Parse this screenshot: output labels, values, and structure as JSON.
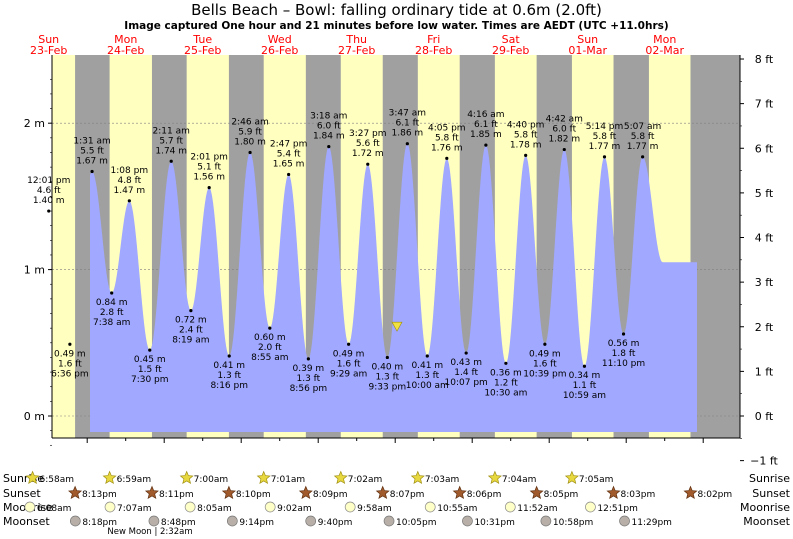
{
  "header": {
    "title": "Bells Beach – Bowl: falling  ordinary tide at 0.6m (2.0ft)",
    "subtitle": "Image captured One hour and 21 minutes before low water. Times are AEDT (UTC +11.0hrs)"
  },
  "colors": {
    "night": "#a0a0a0",
    "day": "#ffffc0",
    "water": "#a0a8ff",
    "date_label": "#ff0000",
    "sun_icon": "#e8d840",
    "sunset_icon": "#a05a2c",
    "moonrise_icon": "#ffffc8",
    "moonset_icon": "#b8b0a8"
  },
  "days": [
    {
      "dow": "Sun",
      "date": "23-Feb"
    },
    {
      "dow": "Mon",
      "date": "24-Feb"
    },
    {
      "dow": "Tue",
      "date": "25-Feb"
    },
    {
      "dow": "Wed",
      "date": "26-Feb"
    },
    {
      "dow": "Thu",
      "date": "27-Feb"
    },
    {
      "dow": "Fri",
      "date": "28-Feb"
    },
    {
      "dow": "Sat",
      "date": "29-Feb"
    },
    {
      "dow": "Sun",
      "date": "01-Mar"
    },
    {
      "dow": "Mon",
      "date": "02-Mar"
    }
  ],
  "chart_data": {
    "type": "area",
    "x_axis": "time (days from 23-Feb 00:00, AEDT)",
    "y_left": {
      "unit": "m",
      "ticks": [
        "0 m",
        "1 m",
        "2 m"
      ],
      "range": [
        -0.3,
        2.45
      ]
    },
    "y_right": {
      "unit": "ft",
      "ticks": [
        "−1 ft",
        "0 ft",
        "1 ft",
        "2 ft",
        "3 ft",
        "4 ft",
        "5 ft",
        "6 ft",
        "7 ft",
        "8 ft"
      ]
    },
    "current": {
      "level_m": 0.6,
      "level_ft": 2.0,
      "state": "falling"
    },
    "extremes": [
      {
        "type": "high",
        "time": "12:01 pm",
        "ft": "4.6 ft",
        "m": "1.40 m",
        "day": 0
      },
      {
        "type": "low",
        "time": "6:36 pm",
        "ft": "1.6 ft",
        "m": "0.49 m",
        "day": 0
      },
      {
        "type": "high",
        "time": "1:31 am",
        "ft": "5.5 ft",
        "m": "1.67 m",
        "day": 1
      },
      {
        "type": "low",
        "time": "7:38 am",
        "ft": "2.8 ft",
        "m": "0.84 m",
        "day": 1
      },
      {
        "type": "high",
        "time": "1:08 pm",
        "ft": "4.8 ft",
        "m": "1.47 m",
        "day": 1
      },
      {
        "type": "low",
        "time": "7:30 pm",
        "ft": "1.5 ft",
        "m": "0.45 m",
        "day": 1
      },
      {
        "type": "high",
        "time": "2:11 am",
        "ft": "5.7 ft",
        "m": "1.74 m",
        "day": 2
      },
      {
        "type": "low",
        "time": "8:19 am",
        "ft": "2.4 ft",
        "m": "0.72 m",
        "day": 2
      },
      {
        "type": "high",
        "time": "2:01 pm",
        "ft": "5.1 ft",
        "m": "1.56 m",
        "day": 2
      },
      {
        "type": "low",
        "time": "8:16 pm",
        "ft": "1.3 ft",
        "m": "0.41 m",
        "day": 2
      },
      {
        "type": "high",
        "time": "2:46 am",
        "ft": "5.9 ft",
        "m": "1.80 m",
        "day": 3
      },
      {
        "type": "low",
        "time": "8:55 am",
        "ft": "2.0 ft",
        "m": "0.60 m",
        "day": 3
      },
      {
        "type": "high",
        "time": "2:47 pm",
        "ft": "5.4 ft",
        "m": "1.65 m",
        "day": 3
      },
      {
        "type": "low",
        "time": "8:56 pm",
        "ft": "1.3 ft",
        "m": "0.39 m",
        "day": 3
      },
      {
        "type": "high",
        "time": "3:18 am",
        "ft": "6.0 ft",
        "m": "1.84 m",
        "day": 4
      },
      {
        "type": "low",
        "time": "9:29 am",
        "ft": "1.6 ft",
        "m": "0.49 m",
        "day": 4
      },
      {
        "type": "high",
        "time": "3:27 pm",
        "ft": "5.6 ft",
        "m": "1.72 m",
        "day": 4
      },
      {
        "type": "low",
        "time": "9:33 pm",
        "ft": "1.3 ft",
        "m": "0.40 m",
        "day": 4
      },
      {
        "type": "high",
        "time": "3:47 am",
        "ft": "6.1 ft",
        "m": "1.86 m",
        "day": 5
      },
      {
        "type": "low",
        "time": "10:00 am",
        "ft": "1.3 ft",
        "m": "0.41 m",
        "day": 5
      },
      {
        "type": "high",
        "time": "4:05 pm",
        "ft": "5.8 ft",
        "m": "1.76 m",
        "day": 5
      },
      {
        "type": "low",
        "time": "10:07 pm",
        "ft": "1.4 ft",
        "m": "0.43 m",
        "day": 5
      },
      {
        "type": "high",
        "time": "4:16 am",
        "ft": "6.1 ft",
        "m": "1.85 m",
        "day": 6
      },
      {
        "type": "low",
        "time": "10:30 am",
        "ft": "1.2 ft",
        "m": "0.36 m",
        "day": 6
      },
      {
        "type": "high",
        "time": "4:40 pm",
        "ft": "5.8 ft",
        "m": "1.78 m",
        "day": 6
      },
      {
        "type": "low",
        "time": "10:39 pm",
        "ft": "1.6 ft",
        "m": "0.49 m",
        "day": 6
      },
      {
        "type": "high",
        "time": "4:42 am",
        "ft": "6.0 ft",
        "m": "1.82 m",
        "day": 7
      },
      {
        "type": "low",
        "time": "10:59 am",
        "ft": "1.1 ft",
        "m": "0.34 m",
        "day": 7
      },
      {
        "type": "high",
        "time": "5:14 pm",
        "ft": "5.8 ft",
        "m": "1.77 m",
        "day": 7
      },
      {
        "type": "low",
        "time": "11:10 pm",
        "ft": "1.8 ft",
        "m": "0.56 m",
        "day": 7
      },
      {
        "type": "high",
        "time": "5:07 am",
        "ft": "5.8 ft",
        "m": "1.77 m",
        "day": 8
      }
    ]
  },
  "astro": {
    "row_labels": [
      "Sunrise",
      "Sunset",
      "Moonrise",
      "Moonset"
    ],
    "sunrise": [
      {
        "time": "6:58am",
        "day": 0
      },
      {
        "time": "6:59am",
        "day": 1
      },
      {
        "time": "7:00am",
        "day": 2
      },
      {
        "time": "7:01am",
        "day": 3
      },
      {
        "time": "7:02am",
        "day": 4
      },
      {
        "time": "7:03am",
        "day": 5
      },
      {
        "time": "7:04am",
        "day": 6
      },
      {
        "time": "7:05am",
        "day": 7
      }
    ],
    "sunset": [
      {
        "time": "8:13pm",
        "day": 0
      },
      {
        "time": "8:11pm",
        "day": 1
      },
      {
        "time": "8:10pm",
        "day": 2
      },
      {
        "time": "8:09pm",
        "day": 3
      },
      {
        "time": "8:07pm",
        "day": 4
      },
      {
        "time": "8:06pm",
        "day": 5
      },
      {
        "time": "8:05pm",
        "day": 6
      },
      {
        "time": "8:03pm",
        "day": 7
      },
      {
        "time": "8:02pm",
        "day": 8
      }
    ],
    "moonrise": [
      {
        "time": "6:08am",
        "day": 0
      },
      {
        "time": "7:07am",
        "day": 1
      },
      {
        "time": "8:05am",
        "day": 2
      },
      {
        "time": "9:02am",
        "day": 3
      },
      {
        "time": "9:58am",
        "day": 4
      },
      {
        "time": "10:55am",
        "day": 5
      },
      {
        "time": "11:52am",
        "day": 6
      },
      {
        "time": "12:51pm",
        "day": 7
      }
    ],
    "moonset": [
      {
        "time": "8:18pm",
        "day": 0
      },
      {
        "time": "8:48pm",
        "day": 1
      },
      {
        "time": "9:14pm",
        "day": 2
      },
      {
        "time": "9:40pm",
        "day": 3
      },
      {
        "time": "10:05pm",
        "day": 4
      },
      {
        "time": "10:31pm",
        "day": 5
      },
      {
        "time": "10:58pm",
        "day": 6
      },
      {
        "time": "11:29pm",
        "day": 7
      }
    ],
    "moon_phase_note": "New Moon | 2:32am"
  }
}
